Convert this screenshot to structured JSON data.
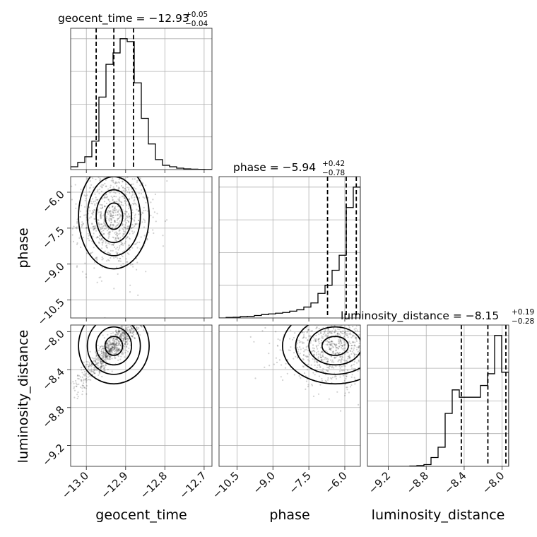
{
  "chart_data": {
    "type": "corner",
    "parameters": [
      "geocent_time",
      "phase",
      "luminosity_distance"
    ],
    "axis_labels": {
      "geocent_time": "geocent_time",
      "phase": "phase",
      "luminosity_distance": "luminosity_distance"
    },
    "ranges": {
      "geocent_time": [
        -13.04,
        -12.68
      ],
      "phase": [
        -11.25,
        -5.35
      ],
      "luminosity_distance": [
        -9.42,
        -7.93
      ]
    },
    "ticks": {
      "geocent_time": [
        -13.0,
        -12.9,
        -12.8,
        -12.7
      ],
      "phase": [
        -10.5,
        -9.0,
        -7.5,
        -6.0
      ],
      "luminosity_distance": [
        -9.2,
        -8.8,
        -8.4,
        -8.0
      ]
    },
    "tick_labels": {
      "geocent_time": [
        "−13.0",
        "−12.9",
        "−12.8",
        "−12.7"
      ],
      "phase": [
        "−10.5",
        "−9.0",
        "−7.5",
        "−6.0"
      ],
      "luminosity_distance": [
        "−9.2",
        "−8.8",
        "−8.4",
        "−8.0"
      ]
    },
    "titles": {
      "geocent_time": {
        "text": "geocent_time = −12.93",
        "plus": "+0.05",
        "minus": "−0.04"
      },
      "phase": {
        "text": "phase = −5.94",
        "plus": "+0.42",
        "minus": "−0.78"
      },
      "luminosity_distance": {
        "text": "luminosity_distance = −8.15",
        "plus": "+0.19",
        "minus": "−0.28"
      }
    },
    "histograms": {
      "geocent_time": {
        "edges": [
          -13.04,
          -13.022,
          -13.004,
          -12.986,
          -12.968,
          -12.95,
          -12.932,
          -12.914,
          -12.896,
          -12.878,
          -12.86,
          -12.842,
          -12.824,
          -12.806,
          -12.788,
          -12.77,
          -12.752,
          -12.734,
          -12.716,
          -12.698,
          -12.68
        ],
        "counts": [
          0.02,
          0.05,
          0.09,
          0.2,
          0.51,
          0.74,
          0.82,
          0.92,
          0.9,
          0.61,
          0.36,
          0.18,
          0.07,
          0.03,
          0.02,
          0.01,
          0.005,
          0.003,
          0.002,
          0.001
        ]
      },
      "phase": {
        "edges": [
          -11.25,
          -10.955,
          -10.66,
          -10.365,
          -10.07,
          -9.775,
          -9.48,
          -9.185,
          -8.89,
          -8.595,
          -8.3,
          -8.005,
          -7.71,
          -7.415,
          -7.12,
          -6.825,
          -6.53,
          -6.235,
          -5.94,
          -5.645,
          -5.35
        ],
        "counts": [
          0.0,
          0.004,
          0.005,
          0.01,
          0.012,
          0.018,
          0.025,
          0.03,
          0.035,
          0.04,
          0.05,
          0.06,
          0.08,
          0.11,
          0.18,
          0.24,
          0.35,
          0.46,
          0.81,
          0.96
        ]
      },
      "luminosity_distance": {
        "edges": [
          -9.42,
          -9.3455,
          -9.271,
          -9.1965,
          -9.122,
          -9.0475,
          -8.973,
          -8.8985,
          -8.824,
          -8.7495,
          -8.675,
          -8.6005,
          -8.526,
          -8.4515,
          -8.377,
          -8.3025,
          -8.228,
          -8.1535,
          -8.079,
          -8.0045,
          -7.93
        ],
        "counts": [
          0.0,
          0.0,
          0.0,
          0.0,
          0.0,
          0.0,
          0.002,
          0.005,
          0.012,
          0.06,
          0.13,
          0.36,
          0.52,
          0.47,
          0.47,
          0.47,
          0.55,
          0.63,
          0.89,
          0.64
        ]
      }
    },
    "quantiles": {
      "geocent_time": [
        -12.975,
        -12.93,
        -12.88
      ],
      "phase": [
        -6.72,
        -5.94,
        -5.52
      ],
      "luminosity_distance": [
        -8.43,
        -8.15,
        -7.96
      ]
    },
    "density_peaks": {
      "phase_vs_geocent_time": {
        "mean_x": -12.93,
        "mean_y": -7.0,
        "sd_x": 0.045,
        "sd_y": 1.1
      },
      "luminosity_distance_vs_geocent_time": {
        "mean_x": -12.93,
        "mean_y": -8.15,
        "sd_x": 0.045,
        "sd_y": 0.2
      },
      "luminosity_distance_vs_phase": {
        "mean_x": -6.4,
        "mean_y": -8.15,
        "sd_x": 1.1,
        "sd_y": 0.2
      }
    },
    "grid": true
  }
}
